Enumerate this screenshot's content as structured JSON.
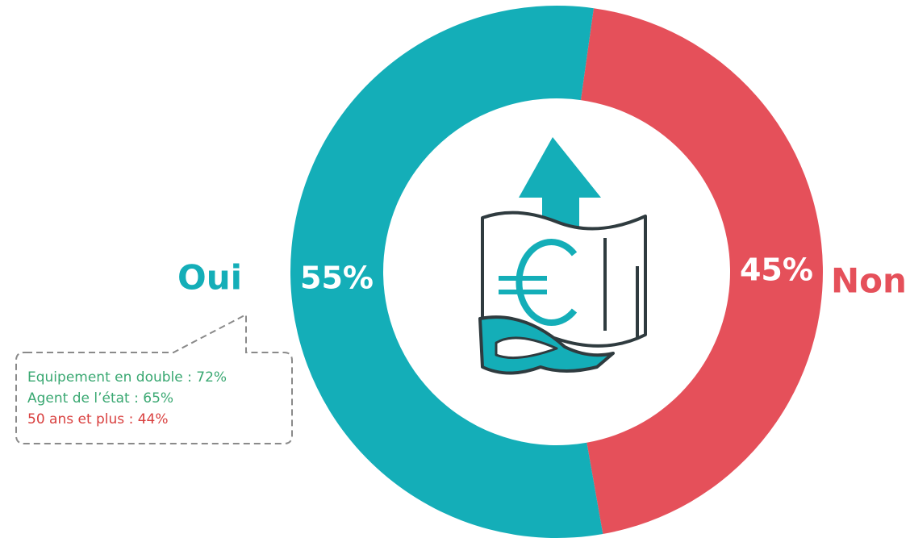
{
  "chart_data": {
    "type": "donut",
    "categories": [
      "Oui",
      "Non"
    ],
    "values": [
      55,
      45
    ],
    "value_labels": [
      "55%",
      "45%"
    ],
    "colors": [
      "#14aeb8",
      "#e5505a"
    ],
    "annotations": [
      {
        "text": "Equipement en double : 72%",
        "color": "#3aa872"
      },
      {
        "text": "Agent de l’état : 65%",
        "color": "#3aa872"
      },
      {
        "text": "50 ans et plus : 44%",
        "color": "#d9403f"
      }
    ]
  }
}
